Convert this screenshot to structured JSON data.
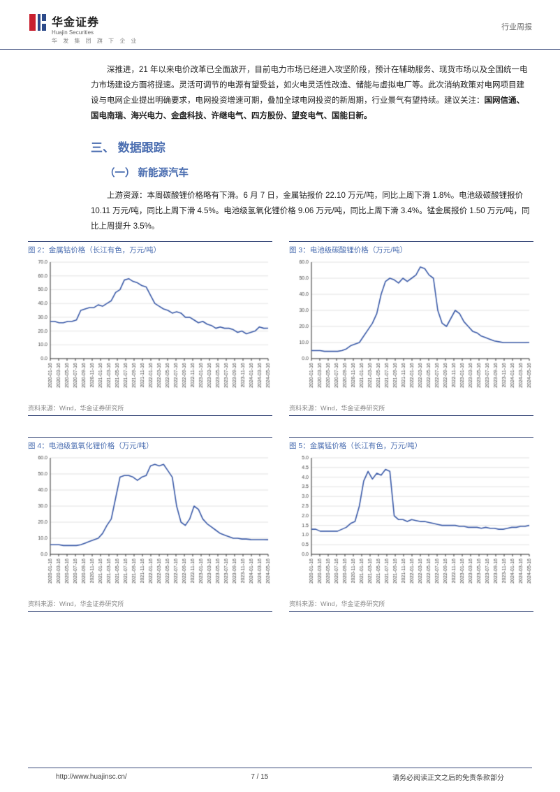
{
  "header": {
    "logo_cn": "华金证券",
    "logo_en": "Huajin Securities",
    "logo_sub": "华 发 集 团 旗 下 企 业",
    "report_type": "行业周报",
    "logo_colors": {
      "red": "#c8202f",
      "blue": "#2c4a8a"
    }
  },
  "body": {
    "para1_a": "深推进，21 年以来电价改革已全面放开，目前电力市场已经进入攻坚阶段，预计在辅助服务、现货市场以及全国统一电力市场建设方面将提速。灵活可调节的电源有望受益，如火电灵活性改造、储能与虚拟电厂等。此次消纳政策对电网项目建设与电网企业提出明确要求，电网投资增速可期，叠加全球电网投资的新周期，行业景气有望持续。建议关注：",
    "para1_b": "国网信通、国电南瑞、海兴电力、金盘科技、许继电气、四方股份、望变电气、国能日新。",
    "section_title": "三、 数据跟踪",
    "subsection_title": "（一） 新能源汽车",
    "para2": "上游资源：本周碳酸锂价格略有下滑。6 月 7 日，金属钴报价 22.10 万元/吨，同比上周下滑 1.8%。电池级碳酸锂报价 10.11 万元/吨，同比上周下滑 4.5%。电池级氢氧化锂价格 9.06 万元/吨，同比上周下滑 3.4%。锰金属报价 1.50 万元/吨，同比上周提升 3.5%。"
  },
  "x_labels": [
    "2020-01-16",
    "2020-03-16",
    "2020-05-16",
    "2020-07-16",
    "2020-09-16",
    "2020-11-16",
    "2021-01-16",
    "2021-03-16",
    "2021-05-16",
    "2021-07-16",
    "2021-09-16",
    "2021-11-16",
    "2022-01-16",
    "2022-03-16",
    "2022-05-16",
    "2022-07-16",
    "2022-09-16",
    "2022-11-16",
    "2023-01-16",
    "2023-03-16",
    "2023-05-16",
    "2023-07-16",
    "2023-09-16",
    "2023-11-16",
    "2024-01-16",
    "2024-03-16",
    "2024-05-16"
  ],
  "charts": [
    {
      "id": "chart2",
      "title": "图 2：金属钴价格（长江有色，万元/吨）",
      "source": "资料来源：Wind，华金证券研究所",
      "type": "line",
      "line_color": "#3a5aa8",
      "line_width": 1.6,
      "grid_color": "#d0d0d0",
      "background_color": "#ffffff",
      "axis_color": "#333",
      "tick_fontsize": 7,
      "ylim": [
        0,
        70
      ],
      "ytick_step": 10,
      "values": [
        27,
        27,
        26,
        26,
        27,
        27,
        28,
        35,
        36,
        37,
        37,
        39,
        38,
        40,
        42,
        48,
        50,
        57,
        58,
        56,
        55,
        53,
        52,
        46,
        40,
        38,
        36,
        35,
        33,
        34,
        33,
        30,
        30,
        28,
        26,
        27,
        25,
        24,
        22,
        23,
        22,
        22,
        21,
        19,
        20,
        18,
        19,
        20,
        23,
        22,
        22.1
      ]
    },
    {
      "id": "chart3",
      "title": "图 3：电池级碳酸锂价格（万元/吨）",
      "source": "资料来源：Wind，华金证券研究所",
      "type": "line",
      "line_color": "#3a5aa8",
      "line_width": 1.6,
      "grid_color": "#d0d0d0",
      "background_color": "#ffffff",
      "axis_color": "#333",
      "tick_fontsize": 7,
      "ylim": [
        0,
        60
      ],
      "ytick_step": 10,
      "values": [
        5,
        5,
        5,
        4.5,
        4.5,
        4.5,
        4.5,
        5,
        6,
        8,
        9,
        10,
        14,
        18,
        22,
        28,
        40,
        48,
        50,
        49,
        47,
        50,
        48,
        50,
        52,
        57,
        56,
        52,
        50,
        30,
        22,
        20,
        25,
        30,
        28,
        23,
        20,
        17,
        16,
        14,
        13,
        12,
        11,
        10.5,
        10,
        10,
        10,
        10,
        10,
        10,
        10.1
      ]
    },
    {
      "id": "chart4",
      "title": "图 4：电池级氢氧化锂价格（万元/吨）",
      "source": "资料来源：Wind，华金证券研究所",
      "type": "line",
      "line_color": "#3a5aa8",
      "line_width": 1.6,
      "grid_color": "#d0d0d0",
      "background_color": "#ffffff",
      "axis_color": "#333",
      "tick_fontsize": 7,
      "ylim": [
        0,
        60
      ],
      "ytick_step": 10,
      "values": [
        6,
        6,
        6,
        5.5,
        5.5,
        5.5,
        5.5,
        6,
        7,
        8,
        9,
        10,
        13,
        18,
        22,
        35,
        48,
        49,
        49,
        48,
        46,
        48,
        49,
        55,
        56,
        55,
        56,
        52,
        48,
        30,
        20,
        18,
        22,
        30,
        28,
        22,
        19,
        17,
        15,
        13,
        12,
        11,
        10,
        10,
        9.5,
        9.5,
        9.2,
        9.1,
        9.1,
        9.1,
        9.06
      ]
    },
    {
      "id": "chart5",
      "title": "图 5：金属锰价格（长江有色，万元/吨）",
      "source": "资料来源：Wind，华金证券研究所",
      "type": "line",
      "line_color": "#3a5aa8",
      "line_width": 1.6,
      "grid_color": "#d0d0d0",
      "background_color": "#ffffff",
      "axis_color": "#333",
      "tick_fontsize": 7,
      "ylim": [
        0,
        5
      ],
      "ytick_step": 0.5,
      "values": [
        1.3,
        1.3,
        1.2,
        1.2,
        1.2,
        1.2,
        1.2,
        1.3,
        1.4,
        1.6,
        1.7,
        2.5,
        3.8,
        4.3,
        3.9,
        4.2,
        4.1,
        4.4,
        4.3,
        2.0,
        1.8,
        1.8,
        1.7,
        1.8,
        1.75,
        1.7,
        1.7,
        1.65,
        1.6,
        1.55,
        1.5,
        1.5,
        1.5,
        1.5,
        1.45,
        1.45,
        1.4,
        1.4,
        1.4,
        1.35,
        1.4,
        1.35,
        1.35,
        1.3,
        1.3,
        1.35,
        1.4,
        1.4,
        1.45,
        1.45,
        1.5
      ]
    }
  ],
  "footer": {
    "url": "http://www.huajinsc.cn/",
    "page": "7 / 15",
    "disclaimer": "请务必阅读正文之后的免责条款部分"
  }
}
